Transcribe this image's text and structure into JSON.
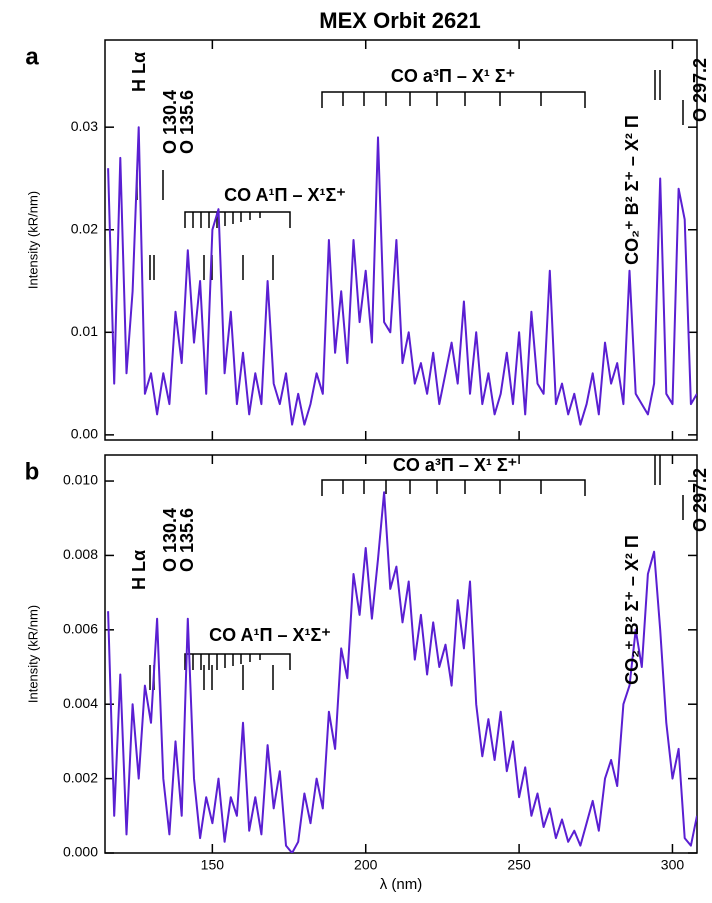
{
  "chart_data": [
    {
      "type": "line",
      "title": "MEX Orbit 2621",
      "panel": "a",
      "ylabel": "Intensity (kR/nm)",
      "xlim": [
        115,
        308
      ],
      "ylim": [
        -0.0005,
        0.0385
      ],
      "yticks": [
        {
          "value": 0,
          "label": "0.00"
        },
        {
          "value": 0.01,
          "label": "0.01"
        },
        {
          "value": 0.02,
          "label": "0.02"
        },
        {
          "value": 0.03,
          "label": "0.03"
        }
      ],
      "annotations": [
        "H Lα",
        "O 130.4",
        "O 135.6",
        "CO A¹Π – X¹Σ⁺",
        "CO a³Π – X¹ Σ⁺",
        "CO₂⁺ B² Σ⁺ – X² Π",
        "O 297.2"
      ],
      "x": [
        116,
        118,
        120,
        122,
        124,
        126,
        128,
        130,
        132,
        134,
        136,
        138,
        140,
        142,
        144,
        146,
        148,
        150,
        152,
        154,
        156,
        158,
        160,
        162,
        164,
        166,
        168,
        170,
        172,
        174,
        176,
        178,
        180,
        182,
        184,
        186,
        188,
        190,
        192,
        194,
        196,
        198,
        200,
        202,
        204,
        206,
        208,
        210,
        212,
        214,
        216,
        218,
        220,
        222,
        224,
        226,
        228,
        230,
        232,
        234,
        236,
        238,
        240,
        242,
        244,
        246,
        248,
        250,
        252,
        254,
        256,
        258,
        260,
        262,
        264,
        266,
        268,
        270,
        272,
        274,
        276,
        278,
        280,
        282,
        284,
        286,
        288,
        290,
        292,
        294,
        296,
        298,
        300,
        302,
        304,
        306,
        308
      ],
      "series": [
        {
          "color": "#5a1fd2",
          "values": [
            0.026,
            0.005,
            0.027,
            0.006,
            0.014,
            0.03,
            0.004,
            0.006,
            0.002,
            0.006,
            0.003,
            0.012,
            0.007,
            0.018,
            0.009,
            0.015,
            0.004,
            0.02,
            0.022,
            0.006,
            0.012,
            0.003,
            0.008,
            0.002,
            0.006,
            0.003,
            0.015,
            0.005,
            0.003,
            0.006,
            0.001,
            0.004,
            0.001,
            0.003,
            0.006,
            0.004,
            0.019,
            0.008,
            0.014,
            0.007,
            0.019,
            0.011,
            0.016,
            0.009,
            0.029,
            0.011,
            0.01,
            0.019,
            0.007,
            0.01,
            0.005,
            0.007,
            0.004,
            0.008,
            0.003,
            0.006,
            0.009,
            0.005,
            0.013,
            0.004,
            0.01,
            0.003,
            0.006,
            0.002,
            0.004,
            0.008,
            0.003,
            0.01,
            0.002,
            0.012,
            0.005,
            0.004,
            0.016,
            0.003,
            0.005,
            0.002,
            0.004,
            0.001,
            0.003,
            0.006,
            0.002,
            0.009,
            0.005,
            0.007,
            0.003,
            0.016,
            0.004,
            0.003,
            0.002,
            0.005,
            0.025,
            0.004,
            0.003,
            0.024,
            0.021,
            0.003,
            0.004
          ]
        }
      ]
    },
    {
      "type": "line",
      "panel": "b",
      "ylabel": "Intensity (kR/nm)",
      "xlabel": "λ (nm)",
      "xlim": [
        115,
        308
      ],
      "ylim": [
        0,
        0.0107
      ],
      "xticks": [
        150,
        200,
        250,
        300
      ],
      "yticks": [
        {
          "value": 0,
          "label": "0.000"
        },
        {
          "value": 0.002,
          "label": "0.002"
        },
        {
          "value": 0.004,
          "label": "0.004"
        },
        {
          "value": 0.006,
          "label": "0.006"
        },
        {
          "value": 0.008,
          "label": "0.008"
        },
        {
          "value": 0.01,
          "label": "0.010"
        }
      ],
      "annotations": [
        "H Lα",
        "O 130.4",
        "O 135.6",
        "CO A¹Π – X¹Σ⁺",
        "CO a³Π – X¹ Σ⁺",
        "CO₂⁺ B² Σ⁺ – X² Π",
        "O 297.2"
      ],
      "x": [
        116,
        118,
        120,
        122,
        124,
        126,
        128,
        130,
        132,
        134,
        136,
        138,
        140,
        142,
        144,
        146,
        148,
        150,
        152,
        154,
        156,
        158,
        160,
        162,
        164,
        166,
        168,
        170,
        172,
        174,
        176,
        178,
        180,
        182,
        184,
        186,
        188,
        190,
        192,
        194,
        196,
        198,
        200,
        202,
        204,
        206,
        208,
        210,
        212,
        214,
        216,
        218,
        220,
        222,
        224,
        226,
        228,
        230,
        232,
        234,
        236,
        238,
        240,
        242,
        244,
        246,
        248,
        250,
        252,
        254,
        256,
        258,
        260,
        262,
        264,
        266,
        268,
        270,
        272,
        274,
        276,
        278,
        280,
        282,
        284,
        286,
        288,
        290,
        292,
        294,
        296,
        298,
        300,
        302,
        304,
        306,
        308
      ],
      "series": [
        {
          "color": "#5a1fd2",
          "values": [
            0.0065,
            0.001,
            0.0048,
            0.0005,
            0.004,
            0.002,
            0.0045,
            0.0035,
            0.0063,
            0.002,
            0.0005,
            0.003,
            0.001,
            0.0063,
            0.002,
            0.0004,
            0.0015,
            0.0008,
            0.002,
            0.0003,
            0.0015,
            0.001,
            0.0035,
            0.0006,
            0.0015,
            0.0005,
            0.0029,
            0.0012,
            0.0022,
            0.0002,
            0,
            0.0003,
            0.0016,
            0.0008,
            0.002,
            0.0012,
            0.0038,
            0.0028,
            0.0055,
            0.0047,
            0.0075,
            0.0064,
            0.0082,
            0.0063,
            0.0079,
            0.0097,
            0.0071,
            0.0077,
            0.0062,
            0.0073,
            0.0052,
            0.0064,
            0.0048,
            0.0062,
            0.005,
            0.0056,
            0.0045,
            0.0068,
            0.0055,
            0.0073,
            0.004,
            0.0026,
            0.0036,
            0.0025,
            0.0038,
            0.0022,
            0.003,
            0.0015,
            0.0023,
            0.001,
            0.0016,
            0.0007,
            0.0012,
            0.0004,
            0.0009,
            0.0003,
            0.0006,
            0.0002,
            0.0008,
            0.0014,
            0.0006,
            0.002,
            0.0025,
            0.0018,
            0.004,
            0.0045,
            0.006,
            0.005,
            0.0075,
            0.0081,
            0.006,
            0.0035,
            0.002,
            0.0028,
            0.0004,
            0.0002,
            0.001
          ]
        }
      ]
    }
  ]
}
